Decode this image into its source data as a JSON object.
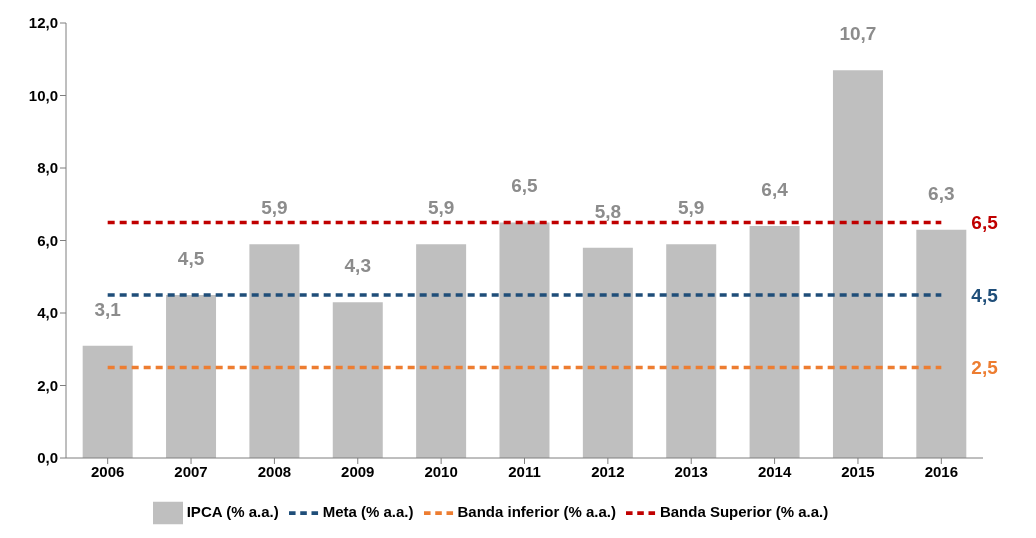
{
  "chart_data": {
    "type": "bar",
    "categories": [
      "2006",
      "2007",
      "2008",
      "2009",
      "2010",
      "2011",
      "2012",
      "2013",
      "2014",
      "2015",
      "2016"
    ],
    "series": [
      {
        "name": "IPCA (% a.a.)",
        "color": "#bfbfbf",
        "values": [
          3.1,
          4.5,
          5.9,
          4.3,
          5.9,
          6.5,
          5.8,
          5.9,
          6.4,
          10.7,
          6.3
        ],
        "value_labels": [
          "3,1",
          "4,5",
          "5,9",
          "4,3",
          "5,9",
          "6,5",
          "5,8",
          "5,9",
          "6,4",
          "10,7",
          "6,3"
        ]
      },
      {
        "name": "Meta (% a.a.)",
        "type": "line",
        "color": "#1f4e79",
        "line_style": "dashed",
        "values": [
          4.5,
          4.5,
          4.5,
          4.5,
          4.5,
          4.5,
          4.5,
          4.5,
          4.5,
          4.5,
          4.5
        ],
        "value_labels": [
          null,
          null,
          null,
          null,
          null,
          null,
          null,
          null,
          null,
          null,
          "4,5"
        ]
      },
      {
        "name": "Banda inferior (% a.a.)",
        "type": "line",
        "color": "#ed7d31",
        "line_style": "dashed",
        "values": [
          2.5,
          2.5,
          2.5,
          2.5,
          2.5,
          2.5,
          2.5,
          2.5,
          2.5,
          2.5,
          2.5
        ],
        "value_labels": [
          null,
          null,
          null,
          null,
          null,
          null,
          null,
          null,
          null,
          null,
          "2,5"
        ]
      },
      {
        "name": "Banda Superior (% a.a.)",
        "type": "line",
        "color": "#c00000",
        "line_style": "dashed",
        "values": [
          6.5,
          6.5,
          6.5,
          6.5,
          6.5,
          6.5,
          6.5,
          6.5,
          6.5,
          6.5,
          6.5
        ],
        "value_labels": [
          null,
          null,
          null,
          null,
          null,
          null,
          null,
          null,
          null,
          null,
          "6,5"
        ]
      }
    ],
    "ylim": [
      0,
      12
    ],
    "yticks": [
      {
        "value": 0,
        "label": "0,0"
      },
      {
        "value": 2,
        "label": "2,0"
      },
      {
        "value": 4,
        "label": "4,0"
      },
      {
        "value": 6,
        "label": "6,0"
      },
      {
        "value": 8,
        "label": "8,0"
      },
      {
        "value": 10,
        "label": "10,0"
      },
      {
        "value": 12,
        "label": "12,0"
      }
    ],
    "grid": false,
    "legend": "bottom",
    "marker": "none"
  }
}
